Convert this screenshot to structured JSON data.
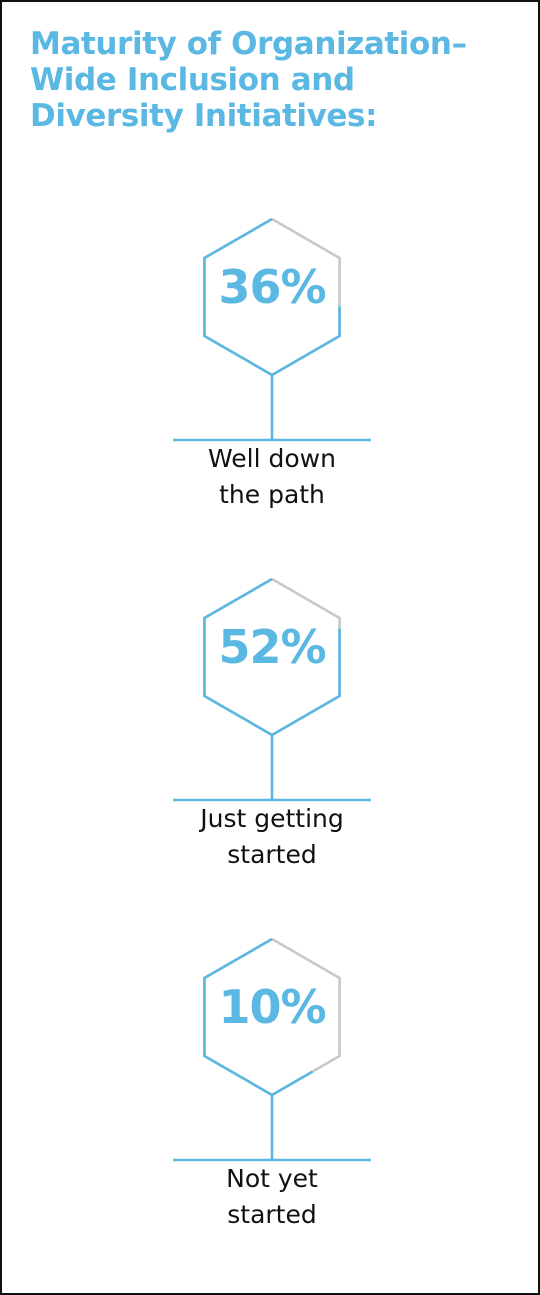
{
  "colors": {
    "accent": "#5ab8e2",
    "track": "#c8c8c8",
    "text": "#111111",
    "border": "#111111"
  },
  "title_lines": [
    "Maturity of Organization–",
    "Wide Inclusion and",
    "Diversity Initiatives:"
  ],
  "chart_data": {
    "type": "other",
    "title": "Maturity of Organization–Wide Inclusion and Diversity Initiatives:",
    "categories": [
      "Well down the path",
      "Just getting started",
      "Not yet started"
    ],
    "values": [
      36,
      52,
      10
    ],
    "unit": "%",
    "items": [
      {
        "value": 36,
        "value_label": "36%",
        "label_lines": [
          "Well down",
          "the path"
        ]
      },
      {
        "value": 52,
        "value_label": "52%",
        "label_lines": [
          "Just getting",
          "started"
        ]
      },
      {
        "value": 10,
        "value_label": "10%",
        "label_lines": [
          "Not yet",
          "started"
        ]
      }
    ]
  }
}
